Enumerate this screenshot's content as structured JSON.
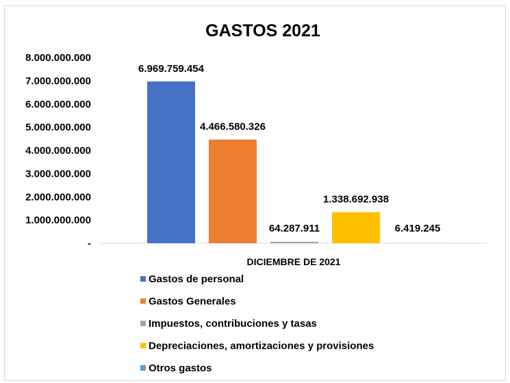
{
  "chart_data": {
    "type": "bar",
    "title": "GASTOS 2021",
    "xlabel": "",
    "ylabel": "",
    "categories": [
      "DICIEMBRE DE 2021"
    ],
    "series": [
      {
        "name": "Gastos de personal",
        "values": [
          6969759454
        ],
        "label": "6.969.759.454",
        "color": "#4472c4"
      },
      {
        "name": "Gastos Generales",
        "values": [
          4466580326
        ],
        "label": "4.466.580.326",
        "color": "#ed7d31"
      },
      {
        "name": "Impuestos, contribuciones y tasas",
        "values": [
          64287911
        ],
        "label": "64.287.911",
        "color": "#a5a5a5"
      },
      {
        "name": "Depreciaciones, amortizaciones y provisiones",
        "values": [
          1338692938
        ],
        "label": "1.338.692.938",
        "color": "#ffc000"
      },
      {
        "name": "Otros gastos",
        "values": [
          6419245
        ],
        "label": "6.419.245",
        "color": "#5b9bd5"
      }
    ],
    "ylim": [
      0,
      8000000000
    ],
    "yticks": [
      {
        "value": 0,
        "label": "-"
      },
      {
        "value": 1000000000,
        "label": "1.000.000.000"
      },
      {
        "value": 2000000000,
        "label": "2.000.000.000"
      },
      {
        "value": 3000000000,
        "label": "3.000.000.000"
      },
      {
        "value": 4000000000,
        "label": "4.000.000.000"
      },
      {
        "value": 5000000000,
        "label": "5.000.000.000"
      },
      {
        "value": 6000000000,
        "label": "6.000.000.000"
      },
      {
        "value": 7000000000,
        "label": "7.000.000.000"
      },
      {
        "value": 8000000000,
        "label": "8.000.000.000"
      }
    ],
    "grid": false,
    "legend": "bottom"
  }
}
